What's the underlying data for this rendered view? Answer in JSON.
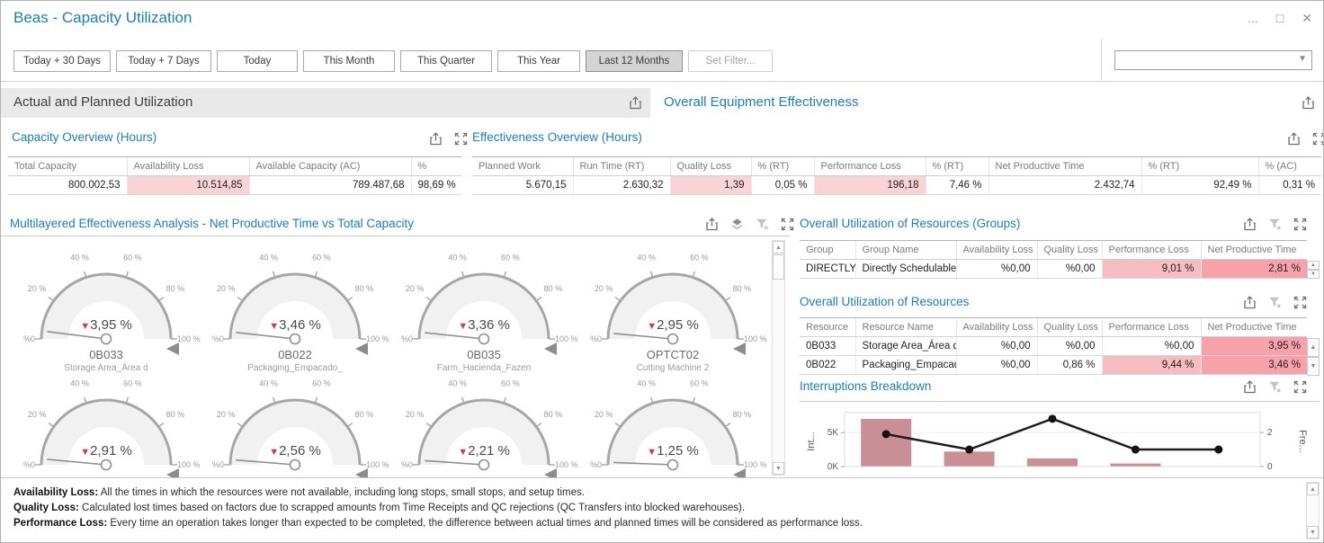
{
  "window": {
    "title": "Beas - Capacity Utilization",
    "controls": {
      "more": "...",
      "maximize": "□",
      "close": "✕"
    }
  },
  "filter_bar": {
    "buttons": [
      {
        "label": "Today + 30 Days"
      },
      {
        "label": "Today + 7 Days"
      },
      {
        "label": "Today"
      },
      {
        "label": "This Month"
      },
      {
        "label": "This Quarter"
      },
      {
        "label": "This Year"
      },
      {
        "label": "Last 12 Months",
        "selected": true
      },
      {
        "label": "Set Filter...",
        "muted": true
      }
    ],
    "combo": {
      "value": ""
    }
  },
  "section_headers": {
    "left": "Actual and Planned Utilization",
    "right": "Overall Equipment Effectiveness"
  },
  "capacity_overview": {
    "title": "Capacity Overview (Hours)",
    "columns": [
      "Total Capacity",
      "Availability Loss",
      "Available Capacity (AC)",
      "%"
    ],
    "aligns": [
      "r",
      "r",
      "r",
      "r"
    ],
    "rows": [
      [
        "800.002,53",
        "10.514,85",
        "789.487,68",
        "98,69 %"
      ]
    ],
    "cell_colors": [
      [
        null,
        "p1",
        null,
        null
      ]
    ]
  },
  "effectiveness_overview": {
    "title": "Effectiveness Overview (Hours)",
    "columns": [
      "Planned Work",
      "Run Time (RT)",
      "Quality Loss",
      "% (RT)",
      "Performance Loss",
      "% (RT)",
      "Net Productive Time",
      "% (RT)",
      "% (AC)"
    ],
    "aligns": [
      "r",
      "r",
      "r",
      "r",
      "r",
      "r",
      "r",
      "r",
      "r"
    ],
    "rows": [
      [
        "5.670,15",
        "2.630,32",
        "1,39",
        "0,05 %",
        "196,18",
        "7,46 %",
        "2.432,74",
        "92,49 %",
        "0,31 %"
      ]
    ],
    "cell_colors": [
      [
        null,
        null,
        "p1",
        null,
        "p1",
        null,
        null,
        null,
        null
      ]
    ]
  },
  "multilayered": {
    "title": "Multilayered Effectiveness Analysis - Net Productive Time vs Total Capacity"
  },
  "groups_table": {
    "title": "Overall Utilization of Resources (Groups)",
    "columns": [
      "Group",
      "Group Name",
      "Availability Loss",
      "Quality Loss",
      "Performance Loss",
      "Net Productive Time"
    ],
    "aligns": [
      "l",
      "l",
      "r",
      "r",
      "r",
      "r"
    ],
    "rows": [
      [
        "DIRECTLY ...",
        "Directly Schedulable ...",
        "%0,00",
        "%0,00",
        "9,01 %",
        "2,81 %"
      ]
    ],
    "cell_colors": [
      [
        null,
        null,
        null,
        null,
        "p2",
        "p3"
      ]
    ]
  },
  "resources_table": {
    "title": "Overall Utilization of Resources",
    "columns": [
      "Resource",
      "Resource Name",
      "Availability Loss",
      "Quality Loss",
      "Performance Loss",
      "Net Productive Time"
    ],
    "aligns": [
      "l",
      "l",
      "r",
      "r",
      "r",
      "r"
    ],
    "rows": [
      [
        "0B033",
        "Storage Area_Área d...",
        "%0,00",
        "%0,00",
        "%0,00",
        "3,95 %"
      ],
      [
        "0B022",
        "Packaging_Empacado...",
        "%0,00",
        "0,86 %",
        "9,44 %",
        "3,46 %"
      ]
    ],
    "cell_colors": [
      [
        null,
        null,
        null,
        null,
        null,
        "p3"
      ],
      [
        null,
        null,
        null,
        null,
        "p2",
        "p3"
      ]
    ]
  },
  "interruptions": {
    "title": "Interruptions Breakdown"
  },
  "footnotes": [
    {
      "term": "Availability Loss:",
      "text": " All the times in which the resources were not available, including long stops, small stops, and setup times."
    },
    {
      "term": "Quality Loss:",
      "text": " Calculated lost times based on factors due to scrapped amounts from Time Receipts and QC rejections (QC Transfers into blocked warehouses)."
    },
    {
      "term": "Performance Loss:",
      "text": " Every time an operation takes longer than expected to be completed, the difference between actual times and planned times will be considered as performance loss."
    }
  ],
  "colors": {
    "accent_blue": "#1a7dc5",
    "loss_cell_light": "#f9d4d7",
    "loss_cell_medium": "#f5bcc1",
    "loss_cell_strong": "#f7a2aa",
    "bar_rose": "#c98e96",
    "gauge_red": "#d43a3a"
  },
  "chart_data": [
    {
      "type": "gauge",
      "title": "Multilayered Effectiveness Analysis - Net Productive Time vs Total Capacity",
      "unit": "%",
      "range": [
        0,
        100
      ],
      "tick_labels": [
        "%0",
        "20 %",
        "40 %",
        "60 %",
        "80 %",
        "100 %"
      ],
      "gauges": [
        {
          "value": 3.95,
          "display": "3,95 %",
          "code": "0B033",
          "name": "Storage Area_Área d"
        },
        {
          "value": 3.46,
          "display": "3,46 %",
          "code": "0B022",
          "name": "Packaging_Empacado_"
        },
        {
          "value": 3.36,
          "display": "3,36 %",
          "code": "0B035",
          "name": "Farm_Hacienda_Fazen"
        },
        {
          "value": 2.95,
          "display": "2,95 %",
          "code": "OPTCT02",
          "name": "Cutting Machine 2"
        },
        {
          "value": 2.91,
          "display": "2,91 %"
        },
        {
          "value": 2.56,
          "display": "2,56 %"
        },
        {
          "value": 2.21,
          "display": "2,21 %"
        },
        {
          "value": 1.25,
          "display": "1,25 %"
        }
      ]
    },
    {
      "type": "bar",
      "title": "Interruptions Breakdown",
      "x": [
        1,
        2,
        3,
        4,
        5
      ],
      "series": [
        {
          "name": "Interruptions",
          "type": "bar",
          "values": [
            7000,
            2200,
            1200,
            450,
            0
          ]
        },
        {
          "name": "Frequency",
          "type": "line",
          "values": [
            1.9,
            1.0,
            2.8,
            1.0,
            1.0
          ]
        }
      ],
      "y_left": {
        "label": "Int...",
        "ticks": [
          {
            "v": 0,
            "t": "0K"
          },
          {
            "v": 5000,
            "t": "5K"
          }
        ],
        "max": 7400
      },
      "y_right": {
        "label": "Fre...",
        "ticks": [
          {
            "v": 0,
            "t": "0"
          },
          {
            "v": 2,
            "t": "2"
          }
        ],
        "max": 2.95
      },
      "grid": true,
      "legend": "none"
    }
  ]
}
